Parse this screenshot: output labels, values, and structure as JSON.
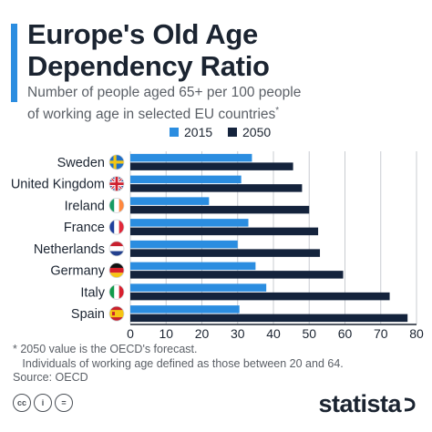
{
  "header": {
    "title_line1": "Europe's Old Age",
    "title_line2": "Dependency Ratio",
    "subtitle_line1": "Number of people aged 65+ per 100 people",
    "subtitle_line2": "of working age in selected EU countries",
    "subtitle_marker": "*"
  },
  "colors": {
    "accent": "#2b8de0",
    "series_2015": "#2b8de0",
    "series_2050": "#14233c",
    "text": "#1b2431",
    "grid": "#c8ccd1"
  },
  "chart_data": {
    "type": "bar",
    "orientation": "horizontal",
    "categories": [
      "Sweden",
      "United Kingdom",
      "Ireland",
      "France",
      "Netherlands",
      "Germany",
      "Italy",
      "Spain"
    ],
    "flags": [
      "flag-sweden-icon",
      "flag-uk-icon",
      "flag-ireland-icon",
      "flag-france-icon",
      "flag-netherlands-icon",
      "flag-germany-icon",
      "flag-italy-icon",
      "flag-spain-icon"
    ],
    "series": [
      {
        "name": "2015",
        "values": [
          34,
          31,
          22,
          33,
          30,
          35,
          38,
          30.5
        ]
      },
      {
        "name": "2050",
        "values": [
          45.5,
          48,
          50,
          52.5,
          53,
          59.5,
          72.5,
          77.5
        ]
      }
    ],
    "xlim": [
      0,
      80
    ],
    "xticks": [
      "0",
      "10",
      "20",
      "30",
      "40",
      "50",
      "60",
      "70",
      "80"
    ],
    "grid": true,
    "legend_position": "top-center"
  },
  "footnote": {
    "line1": "* 2050 value is the OECD's forecast.",
    "line2": "   Individuals of working age defined as those between 20 and 64.",
    "line3": "Source: OECD"
  },
  "license_icons": [
    "cc",
    "i",
    "="
  ],
  "brand": {
    "name": "statista"
  }
}
